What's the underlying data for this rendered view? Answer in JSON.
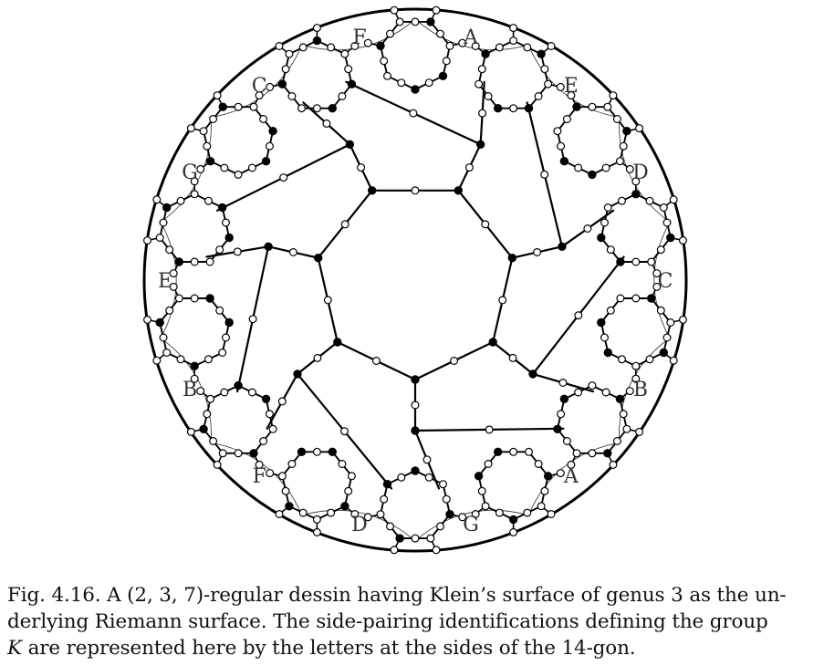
{
  "figure": {
    "side_labels": [
      "A",
      "E",
      "D",
      "C",
      "B",
      "A",
      "G",
      "D",
      "F",
      "B",
      "E",
      "G",
      "C",
      "F"
    ],
    "colors": {
      "line": "#000000",
      "fill_black": "#000000",
      "fill_white": "#ffffff"
    }
  },
  "caption": {
    "line1": "Fig. 4.16. A (2, 3, 7)-regular dessin having Klein’s surface of genus 3 as the un-",
    "line2": "derlying Riemann surface. The side-pairing identifications defining the group",
    "line3_var": "K",
    "line3_rest": " are represented here by the letters at the sides of the 14-gon."
  }
}
